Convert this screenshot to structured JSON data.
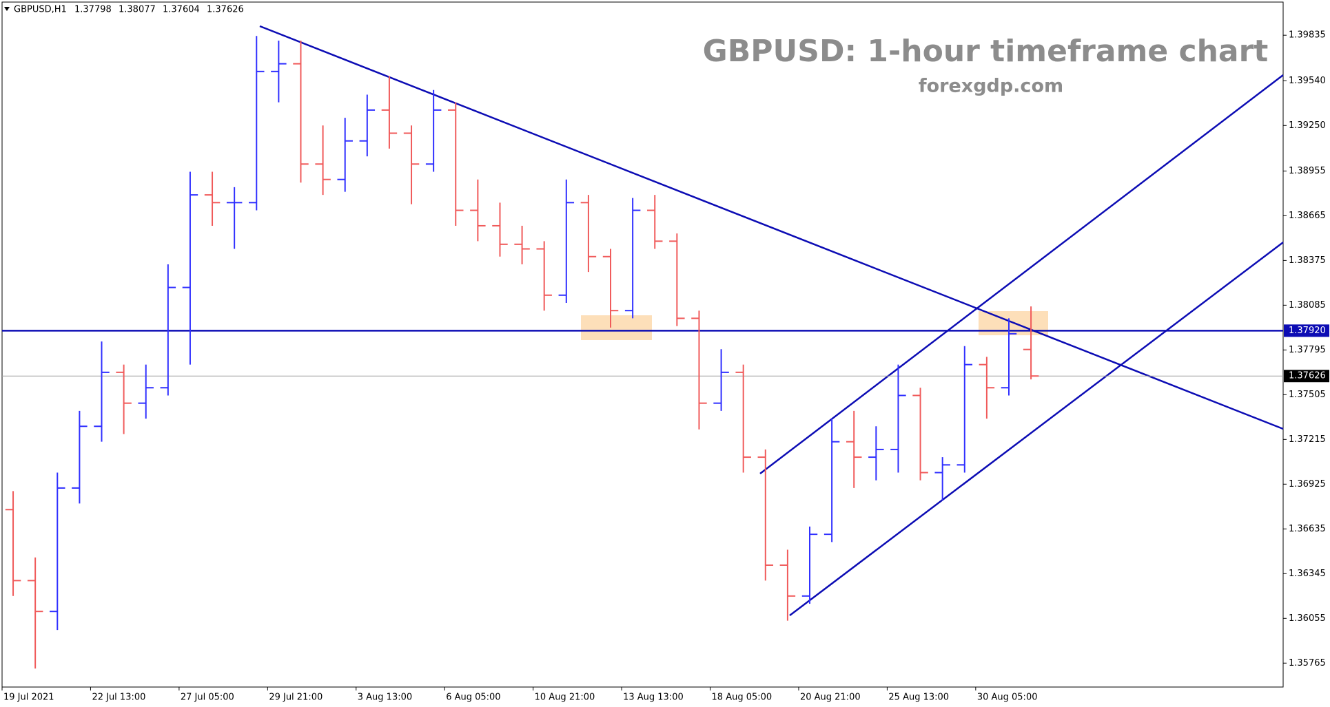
{
  "chart_data": {
    "type": "ohlc",
    "title": "GBPUSD: 1-hour timeframe chart",
    "subtitle": "forexgdp.com",
    "symbol": "GBPUSD,H1",
    "categories": [
      "19 Jul 2021",
      null,
      null,
      null,
      "22 Jul 13:00",
      null,
      null,
      null,
      "27 Jul 05:00",
      null,
      null,
      null,
      "29 Jul 21:00",
      null,
      null,
      null,
      "3 Aug 13:00",
      null,
      null,
      null,
      "6 Aug 05:00",
      null,
      null,
      null,
      "10 Aug 21:00",
      null,
      null,
      null,
      "13 Aug 13:00",
      null,
      null,
      null,
      "18 Aug 05:00",
      null,
      null,
      null,
      "20 Aug 21:00",
      null,
      null,
      null,
      "25 Aug 13:00",
      null,
      null,
      null,
      "30 Aug 05:00",
      null,
      null
    ],
    "open": [
      1.3676,
      1.363,
      1.361,
      1.369,
      1.373,
      1.3765,
      1.3745,
      1.3755,
      1.382,
      1.388,
      1.3875,
      1.3875,
      1.396,
      1.3965,
      1.39,
      1.389,
      1.3915,
      1.3935,
      1.392,
      1.39,
      1.3935,
      1.387,
      1.386,
      1.3848,
      1.3845,
      1.3815,
      1.3875,
      1.384,
      1.3805,
      1.387,
      1.385,
      1.38,
      1.3745,
      1.3765,
      1.371,
      1.364,
      1.362,
      1.366,
      1.372,
      1.371,
      1.3715,
      1.375,
      1.37,
      1.3705,
      1.377,
      1.3755,
      1.37798
    ],
    "high": [
      1.3688,
      1.3645,
      1.37,
      1.374,
      1.3785,
      1.377,
      1.377,
      1.3835,
      1.3895,
      1.3895,
      1.3885,
      1.3983,
      1.398,
      1.398,
      1.3925,
      1.393,
      1.3945,
      1.3957,
      1.3925,
      1.3948,
      1.394,
      1.389,
      1.3875,
      1.386,
      1.385,
      1.389,
      1.388,
      1.3845,
      1.3878,
      1.388,
      1.3855,
      1.3805,
      1.378,
      1.377,
      1.3715,
      1.365,
      1.3665,
      1.3735,
      1.374,
      1.373,
      1.377,
      1.3755,
      1.371,
      1.3782,
      1.3775,
      1.38,
      1.38077
    ],
    "low": [
      1.362,
      1.3573,
      1.3598,
      1.368,
      1.372,
      1.3725,
      1.3735,
      1.375,
      1.377,
      1.386,
      1.3845,
      1.387,
      1.394,
      1.3888,
      1.388,
      1.3882,
      1.3905,
      1.391,
      1.3874,
      1.3895,
      1.386,
      1.385,
      1.384,
      1.3835,
      1.3805,
      1.381,
      1.383,
      1.3794,
      1.38,
      1.3845,
      1.3795,
      1.3728,
      1.374,
      1.37,
      1.363,
      1.3604,
      1.3615,
      1.3655,
      1.369,
      1.3695,
      1.37,
      1.3695,
      1.3682,
      1.37,
      1.3735,
      1.375,
      1.37604
    ],
    "close": [
      1.363,
      1.361,
      1.369,
      1.373,
      1.3765,
      1.3745,
      1.3755,
      1.382,
      1.388,
      1.3875,
      1.3875,
      1.396,
      1.3965,
      1.39,
      1.389,
      1.3915,
      1.3935,
      1.392,
      1.39,
      1.3935,
      1.387,
      1.386,
      1.3848,
      1.3845,
      1.3815,
      1.3875,
      1.384,
      1.3805,
      1.387,
      1.385,
      1.38,
      1.3745,
      1.3765,
      1.371,
      1.364,
      1.362,
      1.366,
      1.372,
      1.371,
      1.3715,
      1.375,
      1.37,
      1.3705,
      1.377,
      1.3755,
      1.379,
      1.37626
    ],
    "up_color": "#2f2fff",
    "down_color": "#f05a5a",
    "ylim": [
      1.3561,
      1.4005
    ],
    "yticks": [
      1.39835,
      {
        "value": 1.3954,
        "label": "1.39540"
      },
      {
        "value": 1.3925,
        "label": "1.39250"
      },
      1.38955,
      1.38665,
      1.38375,
      1.38085,
      1.37795,
      1.37505,
      1.37215,
      1.36925,
      1.36635,
      1.36345,
      1.36055,
      1.35765
    ],
    "level": {
      "value": 1.3792,
      "label": "1.37920"
    },
    "level_color": "#0c0cb4"
  }
}
